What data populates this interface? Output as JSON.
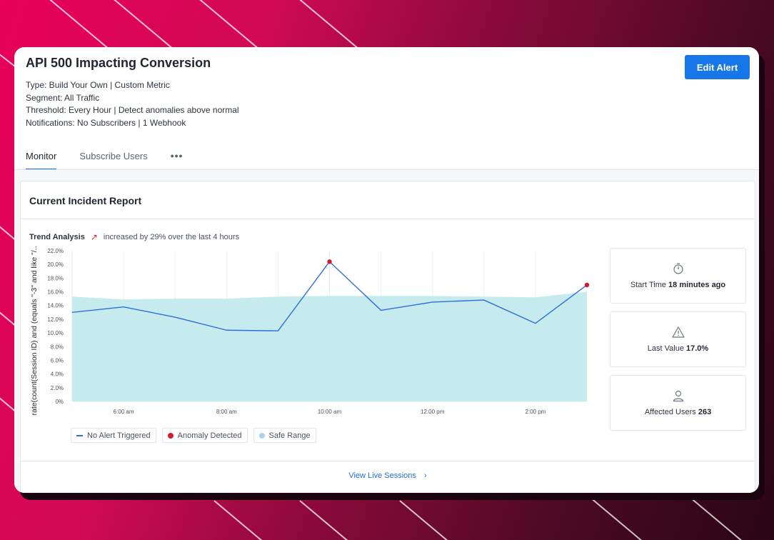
{
  "alert": {
    "title": "API 500 Impacting Conversion",
    "type_line": "Type: Build Your Own | Custom Metric",
    "segment_line": "Segment: All Traffic",
    "threshold_line": "Threshold: Every Hour | Detect anomalies above normal",
    "notifications_line": "Notifications: No Subscribers | 1 Webhook",
    "edit_label": "Edit Alert"
  },
  "tabs": [
    {
      "label": "Monitor",
      "active": true
    },
    {
      "label": "Subscribe Users",
      "active": false
    }
  ],
  "tabs_more": "•••",
  "report": {
    "title": "Current Incident Report",
    "trend_label": "Trend Analysis",
    "trend_text": "increased by 29% over the last 4 hours",
    "view_sessions": "View Live Sessions",
    "view_sessions_chevron": "›"
  },
  "stats": [
    {
      "icon": "stopwatch-icon",
      "label": "Start Time",
      "value": "18 minutes ago"
    },
    {
      "icon": "warning-icon",
      "label": "Last Value",
      "value": "17.0%"
    },
    {
      "icon": "user-icon",
      "label": "Affected Users",
      "value": "263"
    }
  ],
  "legend": {
    "line_label": "No Alert Triggered",
    "anomaly_label": "Anomaly Detected",
    "range_label": "Safe Range"
  },
  "colors": {
    "accent": "#1877e8",
    "line": "#2f6fd8",
    "anomaly": "#d8182f",
    "range_fill": "#c6ebef",
    "range_legend": "#a9d2ee"
  },
  "chart_data": {
    "type": "line",
    "title": "Trend Analysis",
    "ylabel": "rate(count(Session ID) and (equals \"-3\" and like \"/...",
    "xlabel": "",
    "ylim": [
      0,
      22
    ],
    "yticks": [
      0,
      2,
      4,
      6,
      8,
      10,
      12,
      14,
      16,
      18,
      20,
      22
    ],
    "ytick_labels": [
      "0%",
      "2.0%",
      "4.0%",
      "6.0%",
      "8.0%",
      "10.0%",
      "12.0%",
      "14.0%",
      "16.0%",
      "18.0%",
      "20.0%",
      "22.0%"
    ],
    "x_range": [
      5,
      15
    ],
    "xticks": [
      6,
      8,
      10,
      12,
      14
    ],
    "xtick_labels": [
      "6:00 am",
      "8:00 am",
      "10:00 am",
      "12:00 pm",
      "2:00 pm"
    ],
    "series": [
      {
        "name": "No Alert Triggered",
        "x": [
          5,
          6,
          7,
          8,
          9,
          10,
          11,
          12,
          13,
          14,
          15
        ],
        "values": [
          13.0,
          13.8,
          12.3,
          10.4,
          10.3,
          20.4,
          13.3,
          14.5,
          14.8,
          11.4,
          17.0
        ]
      },
      {
        "name": "Safe Range",
        "type": "area",
        "x": [
          5,
          6,
          7,
          8,
          9,
          10,
          11,
          12,
          13,
          14,
          15
        ],
        "lower": [
          0,
          0,
          0,
          0,
          0,
          0,
          0,
          0,
          0,
          0,
          0
        ],
        "upper": [
          15.3,
          14.9,
          15.0,
          15.0,
          15.3,
          15.4,
          15.4,
          15.4,
          15.3,
          15.2,
          16.0
        ]
      }
    ],
    "anomalies": [
      {
        "x": 10,
        "value": 20.4
      },
      {
        "x": 15,
        "value": 17.0
      }
    ]
  }
}
